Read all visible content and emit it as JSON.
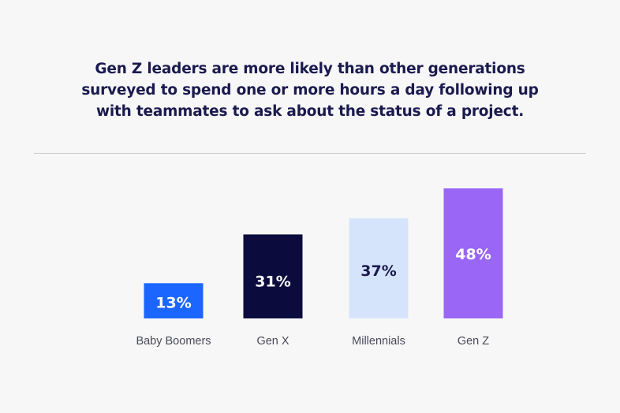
{
  "title_lines": [
    "Gen Z leaders are more likely than other generations",
    "surveyed to spend one or more hours a day following up",
    "with teammates to ask about the status of a project."
  ],
  "chart_data": {
    "type": "bar",
    "title": "Gen Z leaders are more likely than other generations surveyed to spend one or more hours a day following up with teammates to ask about the status of a project.",
    "categories": [
      "Baby Boomers",
      "Gen X",
      "Millennials",
      "Gen Z"
    ],
    "values": [
      13,
      31,
      37,
      48
    ],
    "value_labels": [
      "13%",
      "31%",
      "37%",
      "48%"
    ],
    "unit": "%",
    "colors": [
      "#1a66ff",
      "#0b0b3d",
      "#d6e4fb",
      "#9966f5"
    ],
    "label_colors": [
      "#ffffff",
      "#ffffff",
      "#1a1a4e",
      "#ffffff"
    ],
    "xlabel": "",
    "ylabel": "",
    "ylim": [
      0,
      48
    ],
    "grid": false,
    "legend": "none"
  }
}
